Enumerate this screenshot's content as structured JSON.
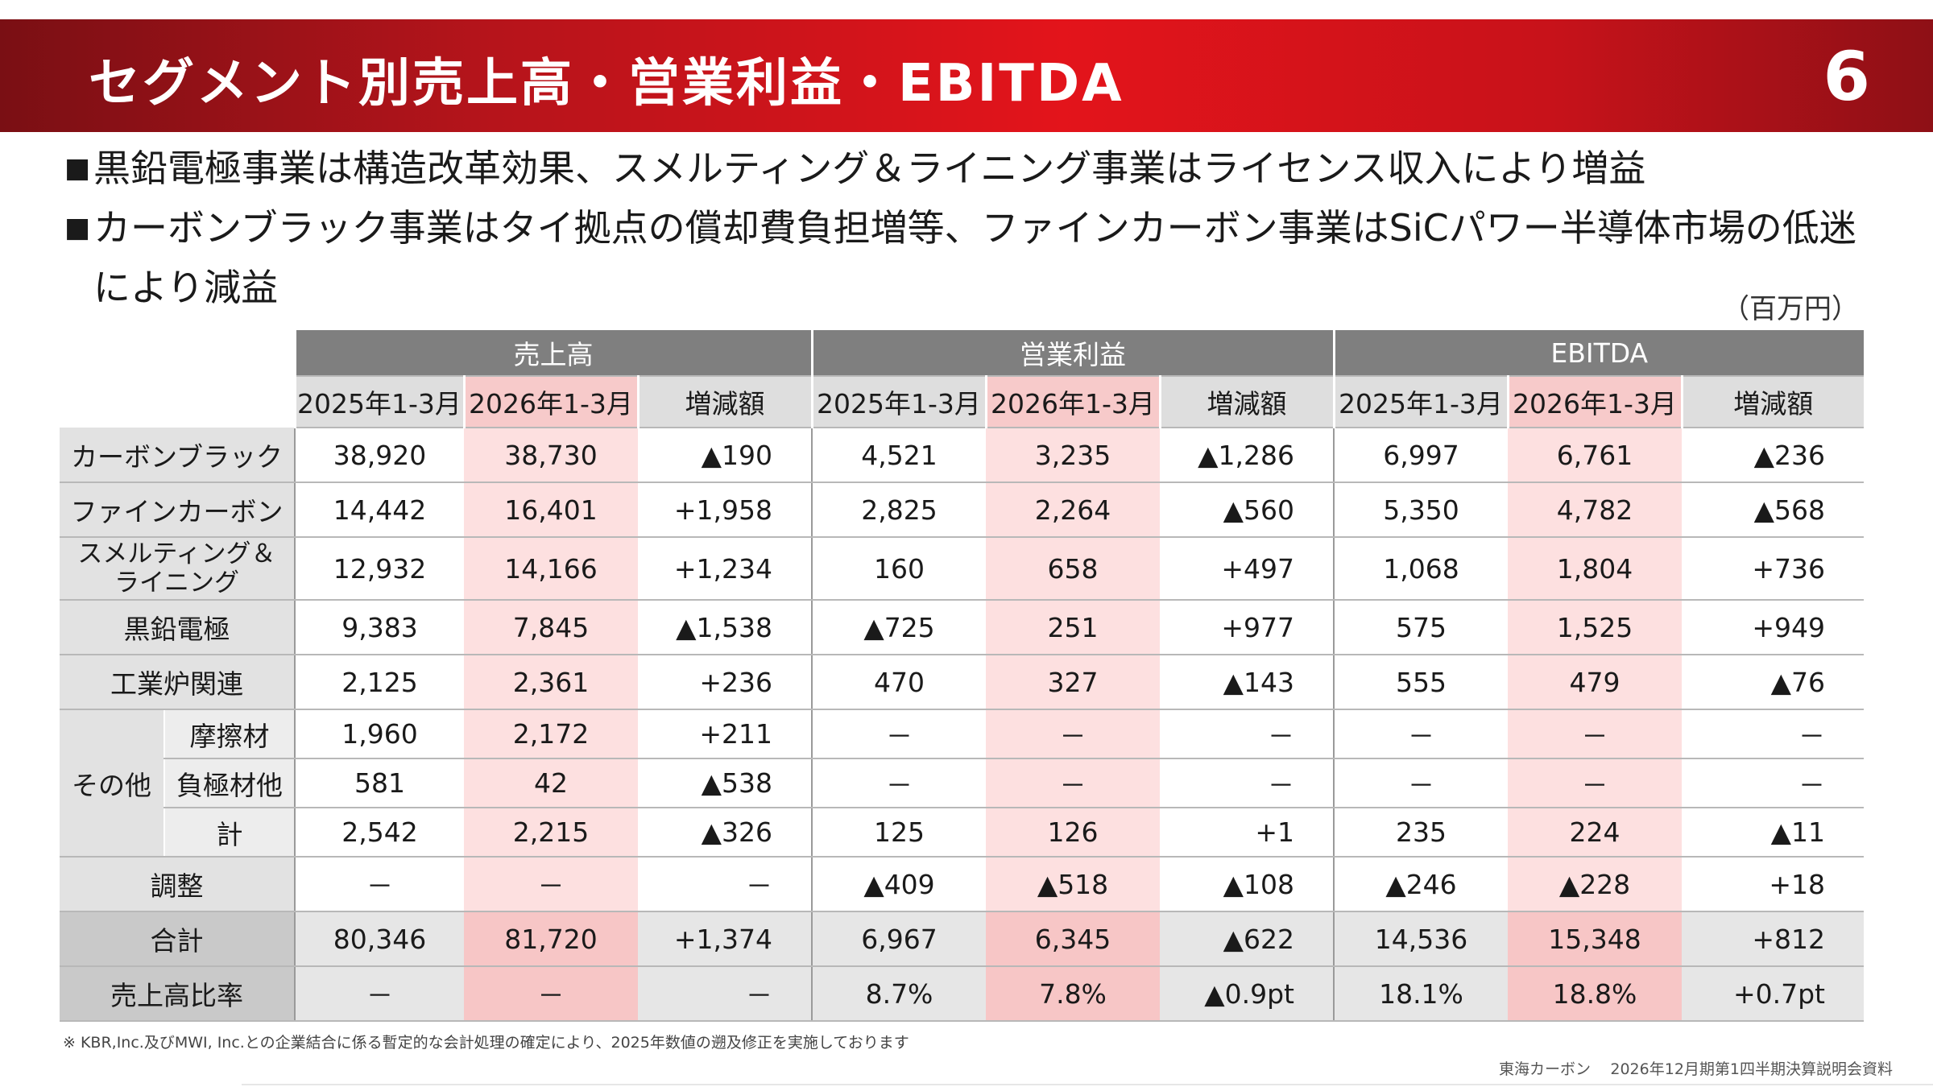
{
  "header": {
    "title": "セグメント別売上高・営業利益・EBITDA",
    "page_number": "6"
  },
  "bullets": [
    {
      "mark": "■",
      "text": "黒鉛電極事業は構造改革効果、スメルティング＆ライニング事業はライセンス収入により増益"
    },
    {
      "mark": "■",
      "text": "カーボンブラック事業はタイ拠点の償却費負担増等、ファインカーボン事業はSiCパワー半導体市場の低迷により減益"
    }
  ],
  "unit": "（百万円）",
  "table": {
    "groups": [
      "売上高",
      "営業利益",
      "EBITDA"
    ],
    "subheaders": [
      "2025年1-3月",
      "2026年1-3月",
      "増減額"
    ],
    "other_group_label": "その他",
    "rows": [
      {
        "label": "カーボンブラック",
        "values": [
          "38,920",
          "38,730",
          "▲190",
          "4,521",
          "3,235",
          "▲1,286",
          "6,997",
          "6,761",
          "▲236"
        ]
      },
      {
        "label": "ファインカーボン",
        "values": [
          "14,442",
          "16,401",
          "+1,958",
          "2,825",
          "2,264",
          "▲560",
          "5,350",
          "4,782",
          "▲568"
        ]
      },
      {
        "label": "スメルティング＆\nライニング",
        "values": [
          "12,932",
          "14,166",
          "+1,234",
          "160",
          "658",
          "+497",
          "1,068",
          "1,804",
          "+736"
        ]
      },
      {
        "label": "黒鉛電極",
        "values": [
          "9,383",
          "7,845",
          "▲1,538",
          "▲725",
          "251",
          "+977",
          "575",
          "1,525",
          "+949"
        ]
      },
      {
        "label": "工業炉関連",
        "values": [
          "2,125",
          "2,361",
          "+236",
          "470",
          "327",
          "▲143",
          "555",
          "479",
          "▲76"
        ]
      },
      {
        "label": "摩擦材",
        "values": [
          "1,960",
          "2,172",
          "+211",
          "－",
          "－",
          "－",
          "－",
          "－",
          "－"
        ]
      },
      {
        "label": "負極材他",
        "values": [
          "581",
          "42",
          "▲538",
          "－",
          "－",
          "－",
          "－",
          "－",
          "－"
        ]
      },
      {
        "label": "計",
        "values": [
          "2,542",
          "2,215",
          "▲326",
          "125",
          "126",
          "+1",
          "235",
          "224",
          "▲11"
        ]
      },
      {
        "label": "調整",
        "values": [
          "－",
          "－",
          "－",
          "▲409",
          "▲518",
          "▲108",
          "▲246",
          "▲228",
          "+18"
        ]
      },
      {
        "label": "合計",
        "values": [
          "80,346",
          "81,720",
          "+1,374",
          "6,967",
          "6,345",
          "▲622",
          "14,536",
          "15,348",
          "+812"
        ]
      },
      {
        "label": "売上高比率",
        "values": [
          "－",
          "－",
          "－",
          "8.7%",
          "7.8%",
          "▲0.9pt",
          "18.1%",
          "18.8%",
          "+0.7pt"
        ]
      }
    ]
  },
  "footnote": "※ KBR,Inc.及びMWI, Inc.との企業結合に係る暫定的な会計処理の確定により、2025年数値の遡及修正を実施しております",
  "footer": {
    "company": "東海カーボン",
    "title": "2026年12月期第1四半期決算説明会資料"
  },
  "colors": {
    "header_red": "#e3141b",
    "highlight_pink": "#fde0e0",
    "group_header_gray": "#7f7f7f"
  }
}
